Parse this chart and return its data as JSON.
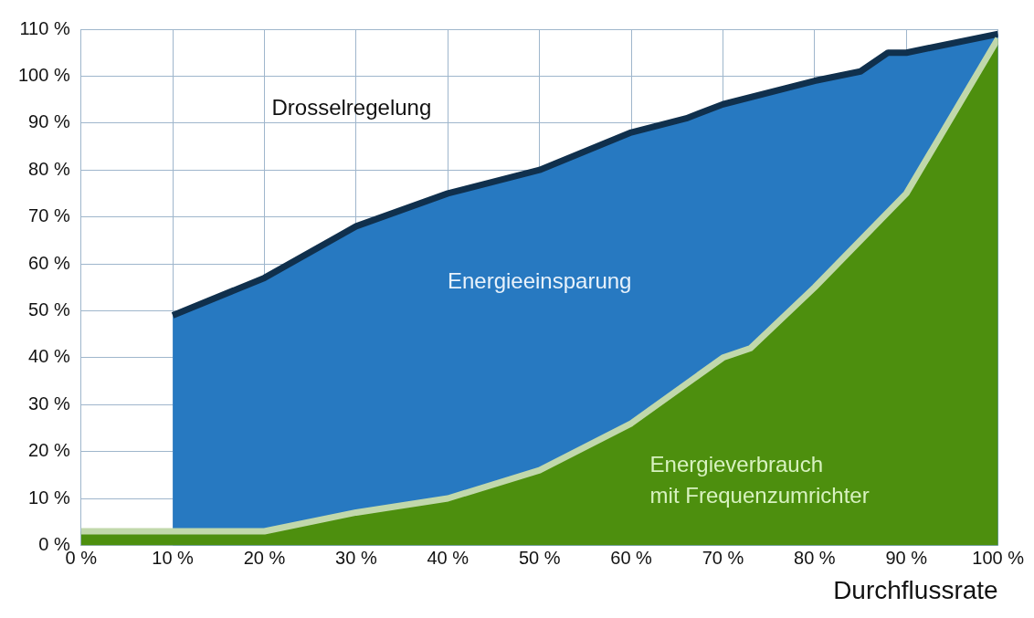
{
  "chart_data": {
    "type": "area",
    "xlabel": "Durchflussrate",
    "xlim": [
      0,
      100
    ],
    "ylim": [
      0,
      110
    ],
    "xticks": [
      {
        "value": 0,
        "label": "0 %"
      },
      {
        "value": 10,
        "label": "10 %"
      },
      {
        "value": 20,
        "label": "20 %"
      },
      {
        "value": 30,
        "label": "30 %"
      },
      {
        "value": 40,
        "label": "40 %"
      },
      {
        "value": 50,
        "label": "50 %"
      },
      {
        "value": 60,
        "label": "60 %"
      },
      {
        "value": 70,
        "label": "70 %"
      },
      {
        "value": 80,
        "label": "80 %"
      },
      {
        "value": 90,
        "label": "90 %"
      },
      {
        "value": 100,
        "label": "100 %"
      }
    ],
    "yticks": [
      {
        "value": 0,
        "label": "0 %"
      },
      {
        "value": 10,
        "label": "10 %"
      },
      {
        "value": 20,
        "label": "20 %"
      },
      {
        "value": 30,
        "label": "30 %"
      },
      {
        "value": 40,
        "label": "40 %"
      },
      {
        "value": 50,
        "label": "50 %"
      },
      {
        "value": 60,
        "label": "60 %"
      },
      {
        "value": 70,
        "label": "70 %"
      },
      {
        "value": 80,
        "label": "80 %"
      },
      {
        "value": 90,
        "label": "90 %"
      },
      {
        "value": 100,
        "label": "100 %"
      },
      {
        "value": 110,
        "label": "110 %"
      }
    ],
    "grid": true,
    "legend": false,
    "series": [
      {
        "color": "#4d8f0e",
        "x": [
          0,
          20,
          30,
          40,
          50,
          60,
          70,
          73,
          80,
          90,
          100
        ],
        "values": [
          3,
          3,
          7,
          10,
          16,
          26,
          40,
          42,
          55,
          75,
          108
        ]
      },
      {
        "color": "#2779c1",
        "x": [
          10,
          20,
          30,
          40,
          50,
          60,
          66,
          70,
          80,
          85,
          88,
          90,
          100
        ],
        "values": [
          49,
          57,
          68,
          75,
          80,
          88,
          91,
          94,
          99,
          101,
          105,
          105,
          109
        ]
      }
    ],
    "annotations": [
      "Drosselregelung",
      "Energieeinsparung",
      "Energieverbrauch\nmit Frequenzumrichter"
    ]
  }
}
